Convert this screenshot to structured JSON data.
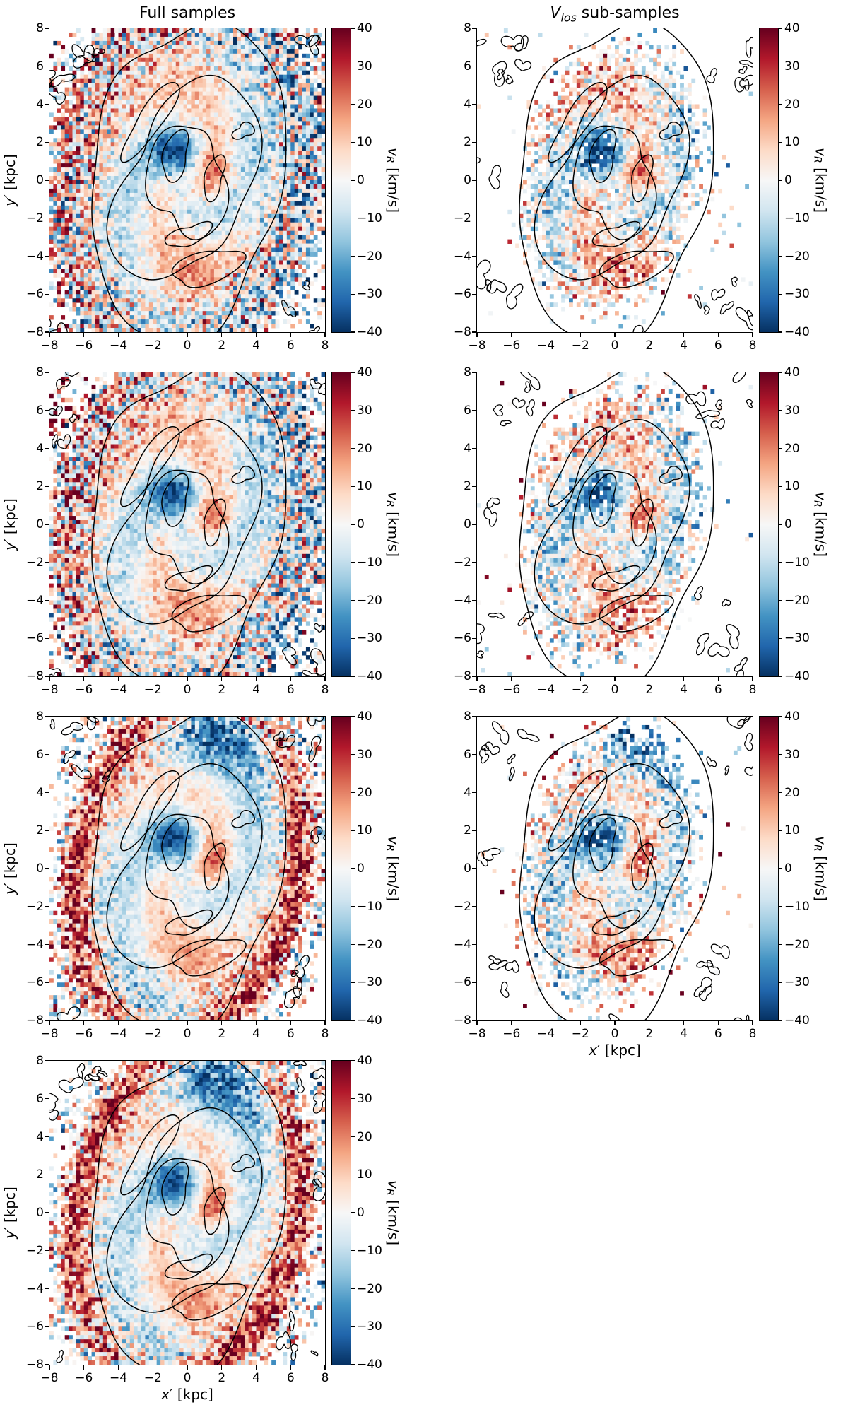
{
  "figure": {
    "column_titles": {
      "left": "Full samples",
      "right_v": "V",
      "right_sub": "los",
      "right_rest": " sub-samples"
    },
    "x_axis": {
      "var": "x′",
      "unit": " [kpc]",
      "ticks": [
        "−8",
        "−6",
        "−4",
        "−2",
        "0",
        "2",
        "4",
        "6",
        "8"
      ]
    },
    "y_axis": {
      "var": "y′",
      "unit": " [kpc]",
      "ticks": [
        "8",
        "6",
        "4",
        "2",
        "0",
        "−2",
        "−4",
        "−6",
        "−8"
      ]
    },
    "colorbar": {
      "var": "v",
      "var_sub": "R",
      "unit": " [km/s]",
      "min": -40,
      "max": 40,
      "ticks": [
        "40",
        "30",
        "20",
        "10",
        "0",
        "−10",
        "−20",
        "−30",
        "−40"
      ],
      "palette_rdbu_r": [
        "#053061",
        "#2166ac",
        "#4393c3",
        "#92c5de",
        "#d1e5f0",
        "#f7f7f7",
        "#fddbc7",
        "#f4a582",
        "#d6604d",
        "#b2182b",
        "#67001f"
      ],
      "contour_color": "#000000"
    }
  },
  "chart_data": [
    {
      "id": "full-1",
      "type": "heatmap",
      "column": "left",
      "row": 1,
      "column_title": "Full samples",
      "x_range": [
        -8,
        8
      ],
      "y_range": [
        -8,
        8
      ],
      "x_ticks": [
        -8,
        -6,
        -4,
        -2,
        0,
        2,
        4,
        6,
        8
      ],
      "y_ticks": [
        -8,
        -6,
        -4,
        -2,
        0,
        2,
        4,
        6,
        8
      ],
      "value_label": "v_R [km/s]",
      "v_range": [
        -40,
        40
      ],
      "value_ticks": [
        40,
        30,
        20,
        10,
        0,
        -10,
        -20,
        -30,
        -40
      ],
      "colormap": "RdBu_r (blue = negative v_R, red = positive v_R)",
      "overlay": "black spiral-arm contours plus noise squiggles in empty corners",
      "pattern": "Dense noisy map over the whole inclined disk: deep-blue clump near (−1, 1.5), red clump near (1.7, 0.4), alternating red/blue spiral arms, red-tinged left/bottom-left outskirts, blue-tinged top-right edge, white corners top-left and bottom-right.",
      "render": {
        "variant": "mild",
        "sub": false,
        "seed": 11,
        "has_xlabel": false
      }
    },
    {
      "id": "sub-1",
      "type": "heatmap",
      "column": "right",
      "row": 1,
      "column_title": "V_los sub-samples",
      "x_range": [
        -8,
        8
      ],
      "y_range": [
        -8,
        8
      ],
      "x_ticks": [
        -8,
        -6,
        -4,
        -2,
        0,
        2,
        4,
        6,
        8
      ],
      "y_ticks": [
        -8,
        -6,
        -4,
        -2,
        0,
        2,
        4,
        6,
        8
      ],
      "value_label": "v_R [km/s]",
      "v_range": [
        -40,
        40
      ],
      "value_ticks": [
        40,
        30,
        20,
        10,
        0,
        -10,
        -20,
        -30,
        -40
      ],
      "colormap": "RdBu_r (blue = negative v_R, red = positive v_R)",
      "overlay": "black spiral-arm contours plus noise squiggles in empty corners",
      "pattern": "Sparse sub-sample pixels confined to the inclined ellipse (|x| ≲ 5): blue core clump near (−1, 1.5), red clump near (1.7, 0.4), speckled arms, white background elsewhere with a few stray pixels.",
      "render": {
        "variant": "mild",
        "sub": true,
        "seed": 21,
        "has_xlabel": false
      }
    },
    {
      "id": "full-2",
      "type": "heatmap",
      "column": "left",
      "row": 2,
      "column_title": "Full samples",
      "x_range": [
        -8,
        8
      ],
      "y_range": [
        -8,
        8
      ],
      "x_ticks": [
        -8,
        -6,
        -4,
        -2,
        0,
        2,
        4,
        6,
        8
      ],
      "y_ticks": [
        -8,
        -6,
        -4,
        -2,
        0,
        2,
        4,
        6,
        8
      ],
      "value_label": "v_R [km/s]",
      "v_range": [
        -40,
        40
      ],
      "value_ticks": [
        40,
        30,
        20,
        10,
        0,
        -10,
        -20,
        -30,
        -40
      ],
      "colormap": "RdBu_r (blue = negative v_R, red = positive v_R)",
      "overlay": "black spiral-arm contours plus noise squiggles in empty corners",
      "pattern": "Second-row full map, same morphology as row 1 with a different noise realization: blue central clump, red clump, spiral arms, noisy red/blue speckled outskirts.",
      "render": {
        "variant": "mild",
        "sub": false,
        "seed": 12,
        "has_xlabel": false
      }
    },
    {
      "id": "sub-2",
      "type": "heatmap",
      "column": "right",
      "row": 2,
      "column_title": "V_los sub-samples",
      "x_range": [
        -8,
        8
      ],
      "y_range": [
        -8,
        8
      ],
      "x_ticks": [
        -8,
        -6,
        -4,
        -2,
        0,
        2,
        4,
        6,
        8
      ],
      "y_ticks": [
        -8,
        -6,
        -4,
        -2,
        0,
        2,
        4,
        6,
        8
      ],
      "value_label": "v_R [km/s]",
      "v_range": [
        -40,
        40
      ],
      "value_ticks": [
        40,
        30,
        20,
        10,
        0,
        -10,
        -20,
        -30,
        -40
      ],
      "colormap": "RdBu_r (blue = negative v_R, red = positive v_R)",
      "overlay": "black spiral-arm contours plus noise squiggles in empty corners",
      "pattern": "Second-row sparse sub-sample: speckled blue core region and red clump inside the covered ellipse, white outside with isolated pixels.",
      "render": {
        "variant": "mild",
        "sub": true,
        "seed": 22,
        "has_xlabel": false
      }
    },
    {
      "id": "full-3",
      "type": "heatmap",
      "column": "left",
      "row": 3,
      "column_title": "Full samples",
      "x_range": [
        -8,
        8
      ],
      "y_range": [
        -8,
        8
      ],
      "x_ticks": [
        -8,
        -6,
        -4,
        -2,
        0,
        2,
        4,
        6,
        8
      ],
      "y_ticks": [
        -8,
        -6,
        -4,
        -2,
        0,
        2,
        4,
        6,
        8
      ],
      "value_label": "v_R [km/s]",
      "v_range": [
        -40,
        40
      ],
      "value_ticks": [
        40,
        30,
        20,
        10,
        0,
        -10,
        -20,
        -30,
        -40
      ],
      "colormap": "RdBu_r (blue = negative v_R, red = positive v_R)",
      "overlay": "black spiral-arm contours plus noise squiggles in empty corners",
      "pattern": "Strong dark-red outskirt crescents along the left and right disk edges, dark-blue wedge at the top major-axis end (x ≈ 0–2, y ≳ 5), blue core clump, red clump right of centre, spiral arms inside.",
      "render": {
        "variant": "strong",
        "sub": false,
        "seed": 13,
        "has_xlabel": false
      }
    },
    {
      "id": "sub-3",
      "type": "heatmap",
      "column": "right",
      "row": 3,
      "column_title": "V_los sub-samples",
      "x_range": [
        -8,
        8
      ],
      "y_range": [
        -8,
        8
      ],
      "x_ticks": [
        -8,
        -6,
        -4,
        -2,
        0,
        2,
        4,
        6,
        8
      ],
      "y_ticks": [
        -8,
        -6,
        -4,
        -2,
        0,
        2,
        4,
        6,
        8
      ],
      "value_label": "v_R [km/s]",
      "v_range": [
        -40,
        40
      ],
      "value_ticks": [
        40,
        30,
        20,
        10,
        0,
        -10,
        -20,
        -30,
        -40
      ],
      "colormap": "RdBu_r (blue = negative v_R, red = positive v_R)",
      "overlay": "black spiral-arm contours plus noise squiggles in empty corners",
      "pattern": "Sub-sample of the row-3 field: prominent dark-blue core clump near (−1, 1.5), red clump near (1.7, 0.4), reddish pixels toward the right edge of the covered ellipse, white elsewhere.",
      "render": {
        "variant": "strong",
        "sub": true,
        "seed": 23,
        "has_xlabel": true
      }
    },
    {
      "id": "full-4",
      "type": "heatmap",
      "column": "left",
      "row": 4,
      "column_title": "Full samples",
      "x_range": [
        -8,
        8
      ],
      "y_range": [
        -8,
        8
      ],
      "x_ticks": [
        -8,
        -6,
        -4,
        -2,
        0,
        2,
        4,
        6,
        8
      ],
      "y_ticks": [
        -8,
        -6,
        -4,
        -2,
        0,
        2,
        4,
        6,
        8
      ],
      "value_label": "v_R [km/s]",
      "v_range": [
        -40,
        40
      ],
      "value_ticks": [
        40,
        30,
        20,
        10,
        0,
        -10,
        -20,
        -30,
        -40
      ],
      "colormap": "RdBu_r (blue = negative v_R, red = positive v_R)",
      "overlay": "black spiral-arm contours plus noise squiggles in empty corners",
      "pattern": "Bottom-row full map, like row 3: red crescents on the minor-axis edges, dark-blue top wedge, blue core clump, red clump and spiral-arm residuals.",
      "render": {
        "variant": "strong",
        "sub": false,
        "seed": 14,
        "has_xlabel": true
      }
    }
  ]
}
